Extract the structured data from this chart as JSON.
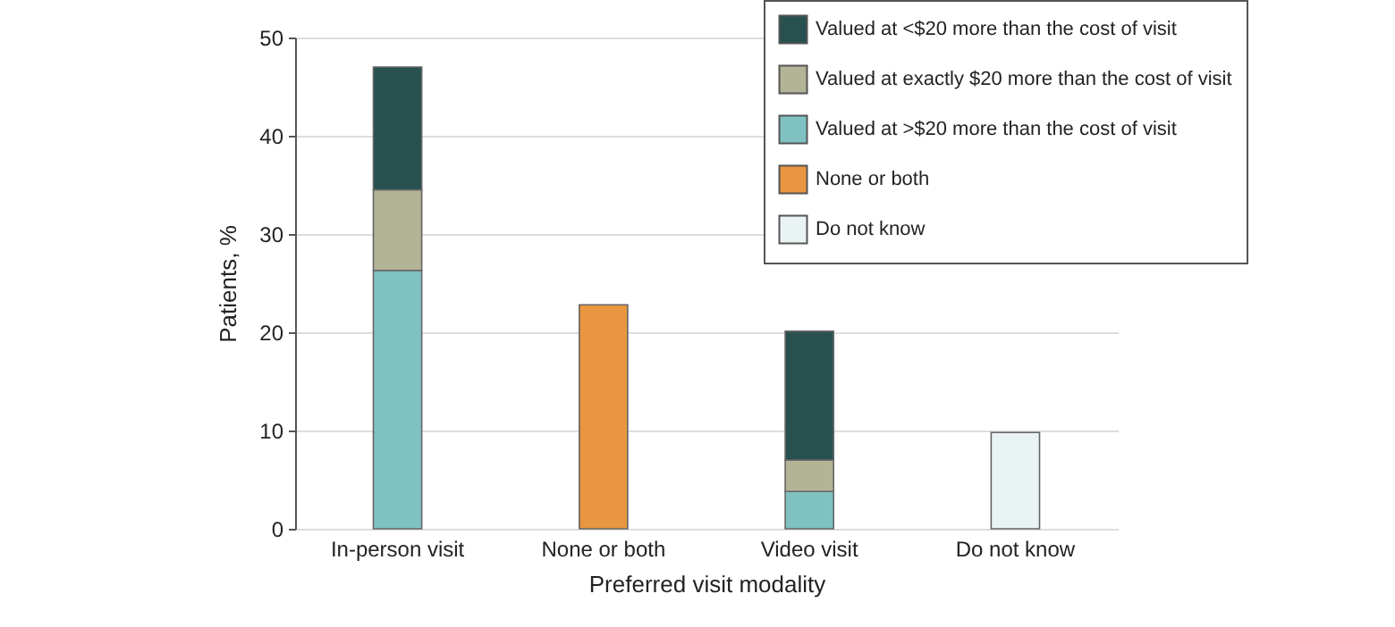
{
  "chart_data": {
    "type": "bar",
    "stacked": true,
    "xlabel": "Preferred visit modality",
    "ylabel": "Patients, %",
    "categories": [
      "In-person visit",
      "None or both",
      "Video visit",
      "Do not know"
    ],
    "series": [
      {
        "name": "Valued at >$20 more than the cost of visit",
        "color": "#80c2c2",
        "values": [
          26.3,
          null,
          3.8,
          null
        ]
      },
      {
        "name": "Valued at exactly $20 more than the cost of visit",
        "color": "#b3b396",
        "values": [
          8.2,
          null,
          3.2,
          null
        ]
      },
      {
        "name": "Valued at <$20 more than the cost of visit",
        "color": "#27504f",
        "values": [
          12.5,
          null,
          13.1,
          null
        ]
      },
      {
        "name": "None or both",
        "color": "#e8963f",
        "values": [
          null,
          22.8,
          null,
          null
        ]
      },
      {
        "name": "Do not know",
        "color": "#eaf3f4",
        "values": [
          null,
          null,
          null,
          9.8
        ]
      }
    ],
    "ylim": [
      0,
      50
    ],
    "yticks": [
      0,
      10,
      20,
      30,
      40,
      50
    ],
    "grid": "y",
    "legend": "top right"
  }
}
